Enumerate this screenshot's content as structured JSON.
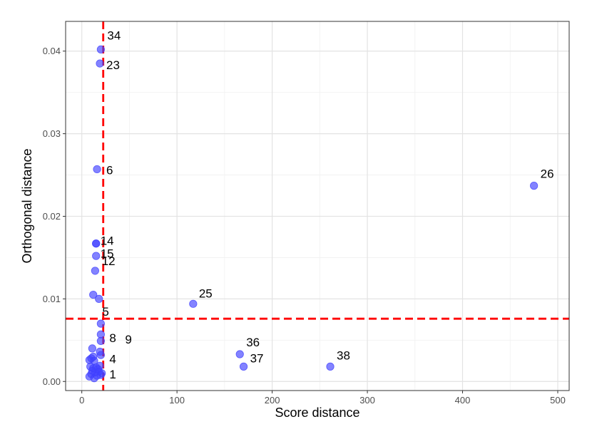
{
  "chart_data": {
    "type": "scatter",
    "title": "",
    "xlabel": "Score distance",
    "ylabel": "Orthogonal distance",
    "xlim": [
      -17,
      512
    ],
    "ylim": [
      -0.0011,
      0.0436
    ],
    "x_ticks": [
      0,
      100,
      200,
      300,
      400,
      500
    ],
    "y_ticks": [
      0.0,
      0.01,
      0.02,
      0.03,
      0.04
    ],
    "x_tick_labels": [
      "0",
      "100",
      "200",
      "300",
      "400",
      "500"
    ],
    "y_tick_labels": [
      "0.00",
      "0.01",
      "0.02",
      "0.03",
      "0.04"
    ],
    "grid": true,
    "point_color": "#4040ff",
    "cutoff_color": "#ff0000",
    "cutoffs": {
      "score": 22.5,
      "orthogonal": 0.0076
    },
    "labeled_points": [
      {
        "label": "34",
        "x": 20,
        "y": 0.0402
      },
      {
        "label": "23",
        "x": 19,
        "y": 0.0385
      },
      {
        "label": "6",
        "x": 16,
        "y": 0.0257
      },
      {
        "label": "26",
        "x": 475,
        "y": 0.0237
      },
      {
        "label": "14",
        "x": 15,
        "y": 0.0167
      },
      {
        "label": "15",
        "x": 15,
        "y": 0.0167
      },
      {
        "label": "12",
        "x": 15,
        "y": 0.0152
      },
      {
        "label": "5",
        "x": 14,
        "y": 0.0134
      },
      {
        "label": "25",
        "x": 117,
        "y": 0.0094
      },
      {
        "label": "9",
        "x": 20,
        "y": 0.007
      },
      {
        "label": "8",
        "x": 20,
        "y": 0.0057
      },
      {
        "label": "4",
        "x": 20,
        "y": 0.0049
      },
      {
        "label": "36",
        "x": 166,
        "y": 0.0033
      },
      {
        "label": "37",
        "x": 170,
        "y": 0.0018
      },
      {
        "label": "38",
        "x": 261,
        "y": 0.0018
      },
      {
        "label": "1",
        "x": 20,
        "y": 0.0008
      }
    ],
    "other_points": [
      {
        "x": 12,
        "y": 0.0105
      },
      {
        "x": 18,
        "y": 0.01
      },
      {
        "x": 11,
        "y": 0.004
      },
      {
        "x": 19,
        "y": 0.0036
      },
      {
        "x": 20,
        "y": 0.0032
      },
      {
        "x": 12,
        "y": 0.003
      },
      {
        "x": 8,
        "y": 0.0026
      },
      {
        "x": 10,
        "y": 0.0028
      },
      {
        "x": 13,
        "y": 0.0025
      },
      {
        "x": 9,
        "y": 0.0018
      },
      {
        "x": 15,
        "y": 0.0017
      },
      {
        "x": 17,
        "y": 0.0015
      },
      {
        "x": 19,
        "y": 0.0019
      },
      {
        "x": 11,
        "y": 0.0013
      },
      {
        "x": 14,
        "y": 0.0011
      },
      {
        "x": 8,
        "y": 0.0006
      },
      {
        "x": 13,
        "y": 0.0004
      },
      {
        "x": 16,
        "y": 0.0007
      },
      {
        "x": 10,
        "y": 0.0009
      },
      {
        "x": 18,
        "y": 0.0012
      },
      {
        "x": 21,
        "y": 0.001
      },
      {
        "x": 12,
        "y": 0.0016
      }
    ]
  }
}
